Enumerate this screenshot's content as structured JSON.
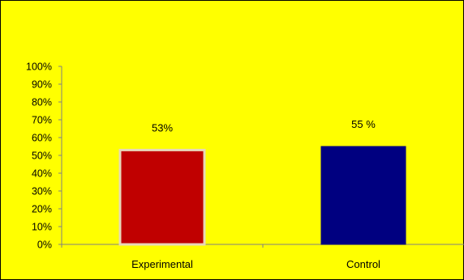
{
  "chart_data": {
    "type": "bar",
    "title": "",
    "xlabel": "",
    "ylabel": "",
    "categories": [
      "Experimental",
      "Control"
    ],
    "values": [
      53,
      55
    ],
    "data_labels": [
      "53%",
      "55 %"
    ],
    "yticks": [
      "0%",
      "10%",
      "20%",
      "30%",
      "40%",
      "50%",
      "60%",
      "70%",
      "80%",
      "90%",
      "100%"
    ],
    "ylim": [
      0,
      100
    ],
    "grid": false,
    "legend": "none",
    "colors": {
      "background": "#ffff00",
      "bars": [
        "#c00000",
        "#000080"
      ],
      "bar_borders": [
        "#e8d8b8",
        "#000080"
      ],
      "axis": "#808080",
      "frame": "#000000"
    }
  }
}
